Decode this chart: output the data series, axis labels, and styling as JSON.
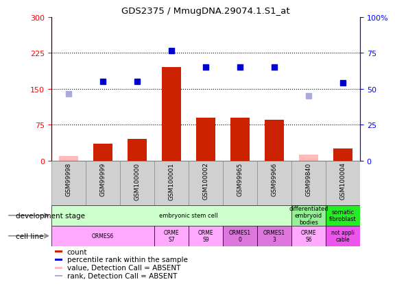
{
  "title": "GDS2375 / MmugDNA.29074.1.S1_at",
  "samples": [
    "GSM99998",
    "GSM99999",
    "GSM100000",
    "GSM100001",
    "GSM100002",
    "GSM99965",
    "GSM99966",
    "GSM99840",
    "GSM100004"
  ],
  "bar_values": [
    10,
    35,
    45,
    195,
    90,
    90,
    85,
    12,
    25
  ],
  "bar_absent": [
    true,
    false,
    false,
    false,
    false,
    false,
    false,
    true,
    false
  ],
  "rank_values": [
    140,
    165,
    165,
    230,
    195,
    195,
    195,
    135,
    162
  ],
  "rank_absent": [
    true,
    false,
    false,
    false,
    false,
    false,
    false,
    true,
    false
  ],
  "ylim_left": [
    0,
    300
  ],
  "ylim_right": [
    0,
    100
  ],
  "yticks_left": [
    0,
    75,
    150,
    225,
    300
  ],
  "yticks_right": [
    0,
    25,
    50,
    75,
    100
  ],
  "bar_color_normal": "#cc2200",
  "bar_color_absent": "#ffbbbb",
  "rank_color_normal": "#0000cc",
  "rank_color_absent": "#aaaadd",
  "dev_regions": [
    {
      "start": 0,
      "end": 8,
      "label": "embryonic stem cell",
      "color": "#ccffcc"
    },
    {
      "start": 7,
      "end": 8,
      "label": "differentiated\nembryoid\nbodies",
      "color": "#99ee99"
    },
    {
      "start": 8,
      "end": 9,
      "label": "somatic\nfibroblast",
      "color": "#22ee22"
    }
  ],
  "cell_regions": [
    {
      "start": 0,
      "end": 3,
      "label": "ORMES6",
      "color": "#ffaaff"
    },
    {
      "start": 3,
      "end": 4,
      "label": "ORME\nS7",
      "color": "#ffaaff"
    },
    {
      "start": 4,
      "end": 5,
      "label": "ORME\nS9",
      "color": "#ffaaff"
    },
    {
      "start": 5,
      "end": 6,
      "label": "ORMES1\n0",
      "color": "#dd77dd"
    },
    {
      "start": 6,
      "end": 7,
      "label": "ORMES1\n3",
      "color": "#dd77dd"
    },
    {
      "start": 7,
      "end": 8,
      "label": "ORME\nS6",
      "color": "#ffaaff"
    },
    {
      "start": 8,
      "end": 9,
      "label": "not appli\ncable",
      "color": "#ee55ee"
    }
  ],
  "legend_items": [
    {
      "label": "count",
      "color": "#cc2200"
    },
    {
      "label": "percentile rank within the sample",
      "color": "#0000cc"
    },
    {
      "label": "value, Detection Call = ABSENT",
      "color": "#ffbbbb"
    },
    {
      "label": "rank, Detection Call = ABSENT",
      "color": "#aaaadd"
    }
  ],
  "sample_bg_color": "#d0d0d0",
  "sample_edge_color": "#888888"
}
